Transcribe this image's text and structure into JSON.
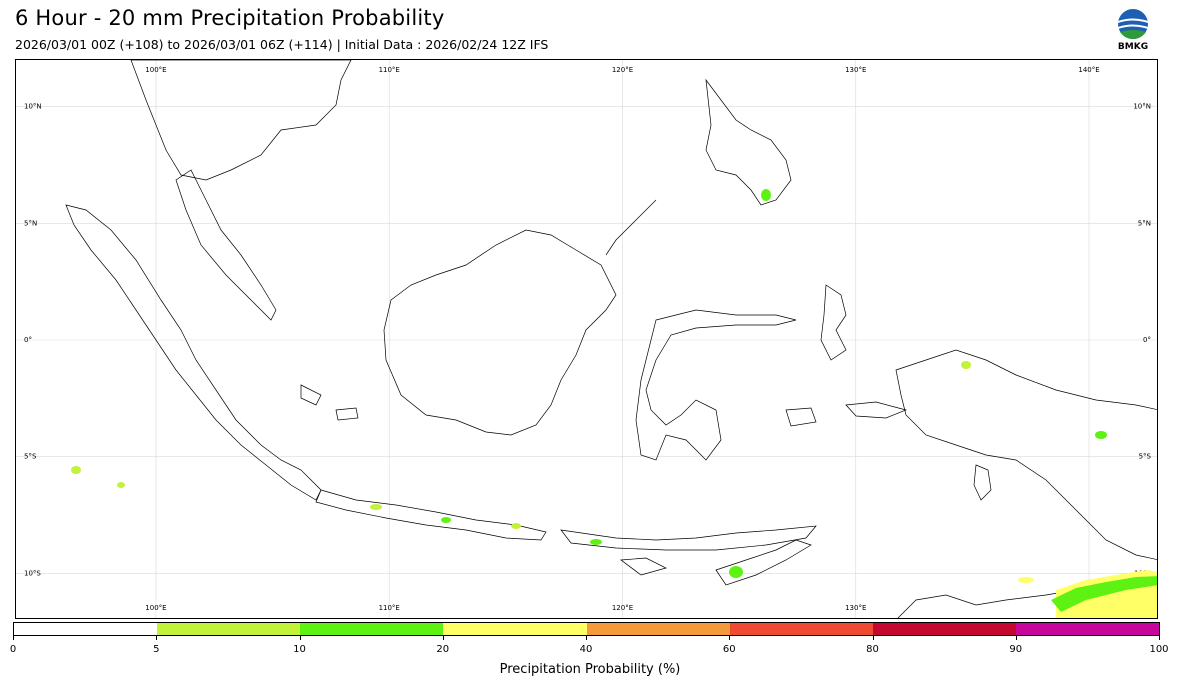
{
  "header": {
    "title": "6 Hour - 20 mm Precipitation Probability",
    "subtitle": "2026/03/01 00Z (+108) to 2026/03/01 06Z (+114) | Initial Data : 2026/02/24 12Z IFS",
    "logo_text": "BMKG"
  },
  "map": {
    "lon_labels": [
      "100°E",
      "110°E",
      "120°E",
      "130°E",
      "140°E"
    ],
    "lat_labels": [
      "10°N",
      "5°N",
      "0°",
      "5°S",
      "10°S"
    ],
    "lon_range": [
      94,
      143
    ],
    "lat_range": [
      -12,
      12
    ],
    "grid": true,
    "lons": [
      100,
      110,
      120,
      130,
      140
    ],
    "lats": [
      10,
      5,
      0,
      -5,
      -10
    ]
  },
  "colorbar": {
    "label": "Precipitation Probability (%)",
    "ticks": [
      "0",
      "5",
      "10",
      "20",
      "40",
      "60",
      "80",
      "90",
      "100"
    ],
    "colors": [
      "#ffffff",
      "#c2f23a",
      "#5ef213",
      "#ffff66",
      "#f59a3a",
      "#ef4b33",
      "#c4082f",
      "#c7069b"
    ]
  }
}
